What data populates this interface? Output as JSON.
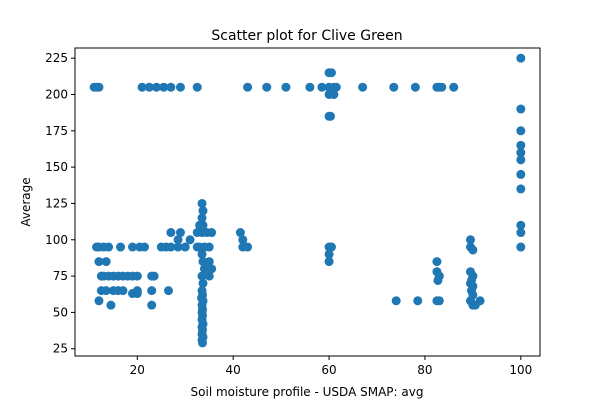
{
  "chart_data": {
    "type": "scatter",
    "title": "Scatter plot for Clive Green",
    "xlabel": "Soil moisture profile - USDA SMAP: avg",
    "ylabel": "Average",
    "xlim": [
      7,
      104
    ],
    "ylim": [
      20,
      232
    ],
    "xticks": [
      20,
      40,
      60,
      80,
      100
    ],
    "yticks": [
      25,
      50,
      75,
      100,
      125,
      150,
      175,
      200,
      225
    ],
    "grid": false,
    "marker_color": "#1f77b4",
    "series": [
      {
        "points": [
          [
            11,
            205
          ],
          [
            11.5,
            205
          ],
          [
            12,
            205
          ],
          [
            21,
            205
          ],
          [
            22.5,
            205
          ],
          [
            24,
            205
          ],
          [
            25.5,
            205
          ],
          [
            27,
            205
          ],
          [
            29,
            205
          ],
          [
            32.5,
            205
          ],
          [
            43,
            205
          ],
          [
            47,
            205
          ],
          [
            51,
            205
          ],
          [
            56,
            205
          ],
          [
            58.5,
            205
          ],
          [
            60,
            205
          ],
          [
            61,
            205
          ],
          [
            61.5,
            205
          ],
          [
            67,
            205
          ],
          [
            73.5,
            205
          ],
          [
            78,
            205
          ],
          [
            82.5,
            205
          ],
          [
            83,
            205
          ],
          [
            83.5,
            205
          ],
          [
            86,
            205
          ],
          [
            60,
            215
          ],
          [
            60.5,
            215
          ],
          [
            60,
            200
          ],
          [
            61,
            200
          ],
          [
            60,
            185
          ],
          [
            60.3,
            185
          ],
          [
            100,
            225
          ],
          [
            100,
            190
          ],
          [
            100,
            175
          ],
          [
            100,
            165
          ],
          [
            100,
            160
          ],
          [
            100,
            155
          ],
          [
            100,
            145
          ],
          [
            100,
            135
          ],
          [
            100,
            110
          ],
          [
            100,
            105
          ],
          [
            100,
            95
          ],
          [
            11.5,
            95
          ],
          [
            12,
            95
          ],
          [
            13,
            95
          ],
          [
            14,
            95
          ],
          [
            16.5,
            95
          ],
          [
            19,
            95
          ],
          [
            20.5,
            95
          ],
          [
            21.5,
            95
          ],
          [
            25,
            95
          ],
          [
            26,
            95
          ],
          [
            27,
            95
          ],
          [
            28.5,
            95
          ],
          [
            30,
            95
          ],
          [
            32.5,
            95
          ],
          [
            33,
            95
          ],
          [
            34,
            95
          ],
          [
            35,
            95
          ],
          [
            42,
            95
          ],
          [
            43,
            95
          ],
          [
            60,
            95
          ],
          [
            60.5,
            95
          ],
          [
            12,
            85
          ],
          [
            13.5,
            85
          ],
          [
            12.5,
            75
          ],
          [
            13,
            75
          ],
          [
            14,
            75
          ],
          [
            15,
            75
          ],
          [
            16,
            75
          ],
          [
            17,
            75
          ],
          [
            18,
            75
          ],
          [
            19,
            75
          ],
          [
            20,
            75
          ],
          [
            23,
            75
          ],
          [
            23.5,
            75
          ],
          [
            12.5,
            65
          ],
          [
            13.5,
            65
          ],
          [
            15,
            65
          ],
          [
            16,
            65
          ],
          [
            17,
            65
          ],
          [
            20,
            65
          ],
          [
            26.5,
            65
          ],
          [
            23,
            65
          ],
          [
            12,
            58
          ],
          [
            14.5,
            55
          ],
          [
            23,
            55
          ],
          [
            19,
            63
          ],
          [
            20,
            63
          ],
          [
            27,
            105
          ],
          [
            29,
            105
          ],
          [
            28.5,
            100
          ],
          [
            31,
            100
          ],
          [
            32.5,
            105
          ],
          [
            33,
            110
          ],
          [
            33.5,
            105
          ],
          [
            34.5,
            105
          ],
          [
            35.5,
            105
          ],
          [
            41.5,
            105
          ],
          [
            42,
            100
          ],
          [
            33.5,
            125
          ],
          [
            33.7,
            120
          ],
          [
            33.5,
            115
          ],
          [
            33.7,
            110
          ],
          [
            33.5,
            90
          ],
          [
            33.7,
            85
          ],
          [
            35,
            85
          ],
          [
            34,
            80
          ],
          [
            35.5,
            80
          ],
          [
            33.5,
            75
          ],
          [
            35,
            75
          ],
          [
            33.7,
            70
          ],
          [
            33.5,
            65
          ],
          [
            33.6,
            62
          ],
          [
            33.4,
            60
          ],
          [
            33.7,
            58
          ],
          [
            33.5,
            55
          ],
          [
            33.6,
            52
          ],
          [
            33.5,
            50
          ],
          [
            33.6,
            48
          ],
          [
            33.5,
            45
          ],
          [
            33.7,
            42
          ],
          [
            33.5,
            40
          ],
          [
            33.6,
            38
          ],
          [
            33.5,
            35
          ],
          [
            33.7,
            33
          ],
          [
            33.5,
            31
          ],
          [
            33.6,
            29
          ],
          [
            60,
            90
          ],
          [
            60,
            85
          ],
          [
            74,
            58
          ],
          [
            78.5,
            58
          ],
          [
            82.5,
            58
          ],
          [
            83,
            58
          ],
          [
            82.5,
            85
          ],
          [
            82.5,
            78
          ],
          [
            83,
            75
          ],
          [
            82.7,
            72
          ],
          [
            89.5,
            100
          ],
          [
            89.5,
            95
          ],
          [
            90,
            93
          ],
          [
            89.5,
            78
          ],
          [
            90,
            75
          ],
          [
            89.7,
            72
          ],
          [
            89.5,
            70
          ],
          [
            90,
            68
          ],
          [
            89.7,
            65
          ],
          [
            90,
            62
          ],
          [
            89.5,
            58
          ],
          [
            90,
            55
          ],
          [
            90.5,
            55
          ],
          [
            91.5,
            58
          ]
        ]
      }
    ]
  }
}
